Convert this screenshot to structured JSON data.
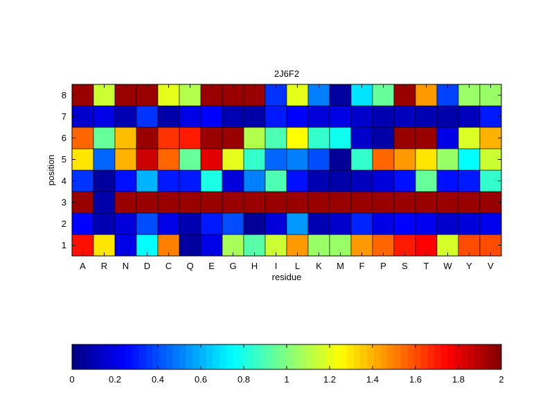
{
  "chart_data": [
    {
      "type": "heatmap",
      "title": "2J6F2",
      "xlabel": "residue",
      "ylabel": "position",
      "x_categories": [
        "A",
        "R",
        "N",
        "D",
        "C",
        "Q",
        "E",
        "G",
        "H",
        "I",
        "L",
        "K",
        "M",
        "F",
        "P",
        "S",
        "T",
        "W",
        "Y",
        "V"
      ],
      "y_categories": [
        "1",
        "2",
        "3",
        "4",
        "5",
        "6",
        "7",
        "8"
      ],
      "zlim": [
        0,
        2
      ],
      "colormap": "jet",
      "grid": true,
      "values": [
        [
          1.72,
          1.3,
          0.2,
          0.75,
          1.5,
          0.06,
          0.2,
          1.08,
          0.92,
          1.15,
          1.45,
          1.05,
          1.05,
          1.45,
          1.55,
          1.7,
          1.75,
          1.17,
          1.6,
          1.6
        ],
        [
          0.25,
          0.1,
          0.18,
          0.4,
          0.2,
          0.1,
          0.3,
          0.4,
          0.05,
          0.18,
          0.55,
          0.1,
          0.15,
          0.32,
          0.2,
          0.25,
          0.22,
          0.15,
          0.18,
          0.22
        ],
        [
          1.95,
          0.08,
          1.95,
          1.95,
          1.95,
          1.95,
          1.95,
          1.95,
          1.95,
          1.95,
          1.95,
          1.95,
          1.95,
          1.95,
          1.95,
          1.95,
          1.95,
          1.95,
          1.95,
          1.95
        ],
        [
          0.35,
          0.06,
          0.28,
          0.6,
          0.3,
          0.3,
          0.8,
          0.18,
          0.5,
          0.9,
          0.28,
          0.1,
          0.08,
          0.12,
          0.18,
          0.28,
          0.95,
          0.28,
          0.3,
          0.85
        ],
        [
          1.3,
          0.45,
          1.4,
          1.85,
          1.55,
          0.95,
          1.8,
          1.2,
          0.85,
          0.45,
          0.5,
          0.4,
          0.05,
          0.85,
          1.55,
          1.45,
          1.3,
          1.05,
          0.75,
          1.15
        ],
        [
          1.55,
          0.95,
          1.38,
          1.95,
          1.65,
          1.7,
          1.95,
          1.95,
          1.1,
          0.9,
          1.25,
          0.85,
          0.78,
          0.15,
          0.08,
          1.95,
          1.95,
          0.2,
          1.18,
          1.4
        ],
        [
          0.15,
          0.2,
          0.1,
          0.35,
          0.08,
          0.2,
          0.25,
          0.1,
          0.08,
          0.3,
          0.25,
          0.18,
          0.2,
          0.15,
          0.1,
          0.12,
          0.1,
          0.08,
          0.12,
          0.3
        ],
        [
          1.95,
          1.15,
          1.95,
          1.95,
          1.2,
          1.1,
          1.95,
          1.95,
          1.95,
          0.35,
          1.2,
          0.5,
          0.06,
          0.7,
          0.95,
          1.95,
          1.45,
          0.38,
          1.05,
          1.05
        ]
      ]
    },
    {
      "type": "colorbar",
      "range": [
        0,
        2
      ],
      "tick_labels": [
        "0",
        "0.2",
        "0.4",
        "0.6",
        "0.8",
        "1",
        "1.2",
        "1.4",
        "1.6",
        "1.8",
        "2"
      ],
      "ticks": [
        0,
        0.2,
        0.4,
        0.6,
        0.8,
        1.0,
        1.2,
        1.4,
        1.6,
        1.8,
        2.0
      ],
      "levels": 64
    }
  ]
}
